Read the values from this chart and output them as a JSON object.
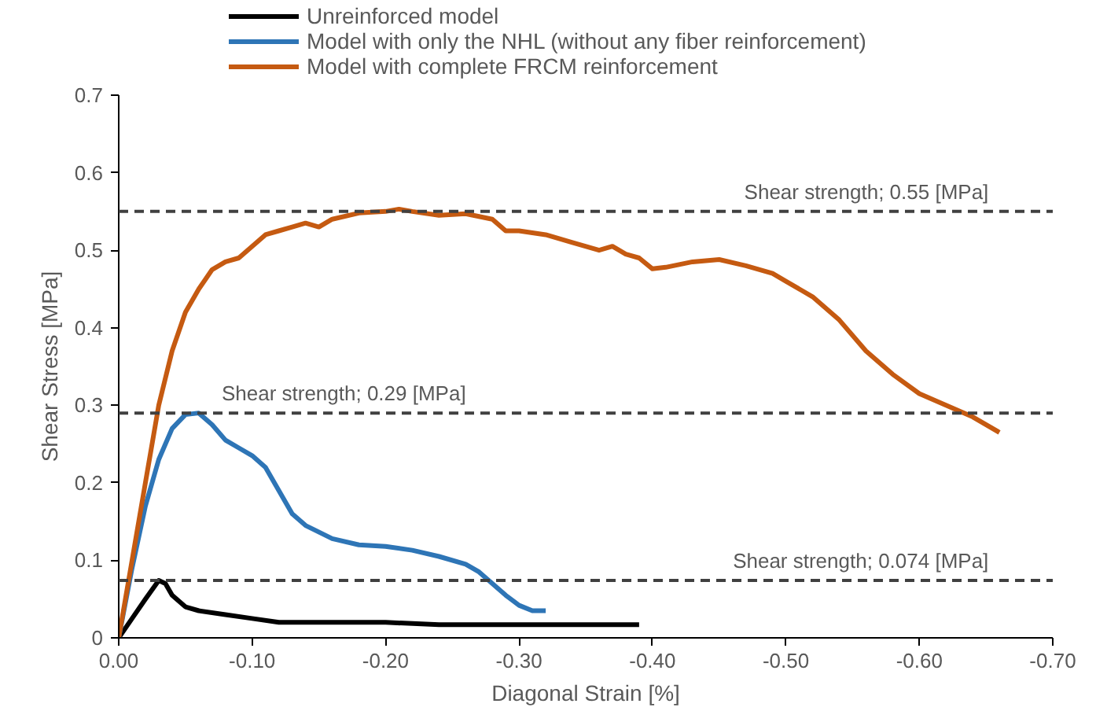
{
  "chart_data": {
    "type": "line",
    "xlabel": "Diagonal Strain [%]",
    "ylabel": "Shear Stress [MPa]",
    "xlim": [
      0,
      -0.7
    ],
    "ylim": [
      0,
      0.7
    ],
    "xticks": [
      {
        "value": 0,
        "label": "0.00"
      },
      {
        "value": -0.1,
        "label": "-0.10"
      },
      {
        "value": -0.2,
        "label": "-0.20"
      },
      {
        "value": -0.3,
        "label": "-0.30"
      },
      {
        "value": -0.4,
        "label": "-0.40"
      },
      {
        "value": -0.5,
        "label": "-0.50"
      },
      {
        "value": -0.6,
        "label": "-0.60"
      },
      {
        "value": -0.7,
        "label": "-0.70"
      }
    ],
    "yticks": [
      0,
      0.1,
      0.2,
      0.3,
      0.4,
      0.5,
      0.6,
      0.7
    ],
    "grid": false,
    "legend": "top",
    "marker": "none",
    "line_style": "solid",
    "series": [
      {
        "name": "Unreinforced model",
        "color": "#000000",
        "x": [
          0,
          -0.01,
          -0.02,
          -0.03,
          -0.035,
          -0.04,
          -0.05,
          -0.06,
          -0.08,
          -0.1,
          -0.12,
          -0.2,
          -0.24,
          -0.39
        ],
        "values": [
          0,
          0.025,
          0.05,
          0.074,
          0.07,
          0.055,
          0.04,
          0.035,
          0.03,
          0.025,
          0.02,
          0.02,
          0.017,
          0.017
        ]
      },
      {
        "name": "Model with only the NHL (without any fiber reinforcement)",
        "color": "#2e75b6",
        "x": [
          0,
          -0.01,
          -0.02,
          -0.03,
          -0.04,
          -0.05,
          -0.06,
          -0.07,
          -0.08,
          -0.09,
          -0.1,
          -0.11,
          -0.12,
          -0.13,
          -0.14,
          -0.16,
          -0.18,
          -0.2,
          -0.22,
          -0.24,
          -0.26,
          -0.27,
          -0.28,
          -0.29,
          -0.3,
          -0.31,
          -0.32
        ],
        "values": [
          0,
          0.09,
          0.17,
          0.23,
          0.27,
          0.288,
          0.29,
          0.275,
          0.255,
          0.245,
          0.235,
          0.22,
          0.19,
          0.16,
          0.145,
          0.128,
          0.12,
          0.118,
          0.113,
          0.105,
          0.095,
          0.085,
          0.07,
          0.055,
          0.042,
          0.035,
          0.035
        ]
      },
      {
        "name": "Model with complete FRCM reinforcement",
        "color": "#c55a11",
        "x": [
          0,
          -0.01,
          -0.02,
          -0.03,
          -0.04,
          -0.05,
          -0.06,
          -0.07,
          -0.08,
          -0.09,
          -0.1,
          -0.11,
          -0.12,
          -0.13,
          -0.14,
          -0.15,
          -0.16,
          -0.18,
          -0.2,
          -0.21,
          -0.22,
          -0.24,
          -0.26,
          -0.28,
          -0.29,
          -0.3,
          -0.32,
          -0.34,
          -0.36,
          -0.37,
          -0.38,
          -0.39,
          -0.4,
          -0.41,
          -0.43,
          -0.45,
          -0.47,
          -0.49,
          -0.5,
          -0.52,
          -0.54,
          -0.56,
          -0.58,
          -0.6,
          -0.62,
          -0.64,
          -0.66
        ],
        "values": [
          0,
          0.1,
          0.2,
          0.3,
          0.37,
          0.42,
          0.45,
          0.475,
          0.485,
          0.49,
          0.505,
          0.52,
          0.525,
          0.53,
          0.535,
          0.53,
          0.54,
          0.548,
          0.55,
          0.553,
          0.55,
          0.545,
          0.547,
          0.54,
          0.525,
          0.525,
          0.52,
          0.51,
          0.5,
          0.505,
          0.495,
          0.49,
          0.476,
          0.478,
          0.485,
          0.488,
          0.48,
          0.47,
          0.46,
          0.44,
          0.41,
          0.37,
          0.34,
          0.315,
          0.3,
          0.285,
          0.265
        ]
      }
    ],
    "ref_lines": [
      {
        "axis": "y",
        "value": 0.55,
        "label": "Shear strength;    0.55 [MPa]",
        "color": "#404040",
        "line_style": "dashed"
      },
      {
        "axis": "y",
        "value": 0.29,
        "label": "Shear strength;    0.29 [MPa]",
        "color": "#404040",
        "line_style": "dashed"
      },
      {
        "axis": "y",
        "value": 0.074,
        "label": "Shear strength;    0.074 [MPa]",
        "color": "#404040",
        "line_style": "dashed"
      }
    ]
  }
}
